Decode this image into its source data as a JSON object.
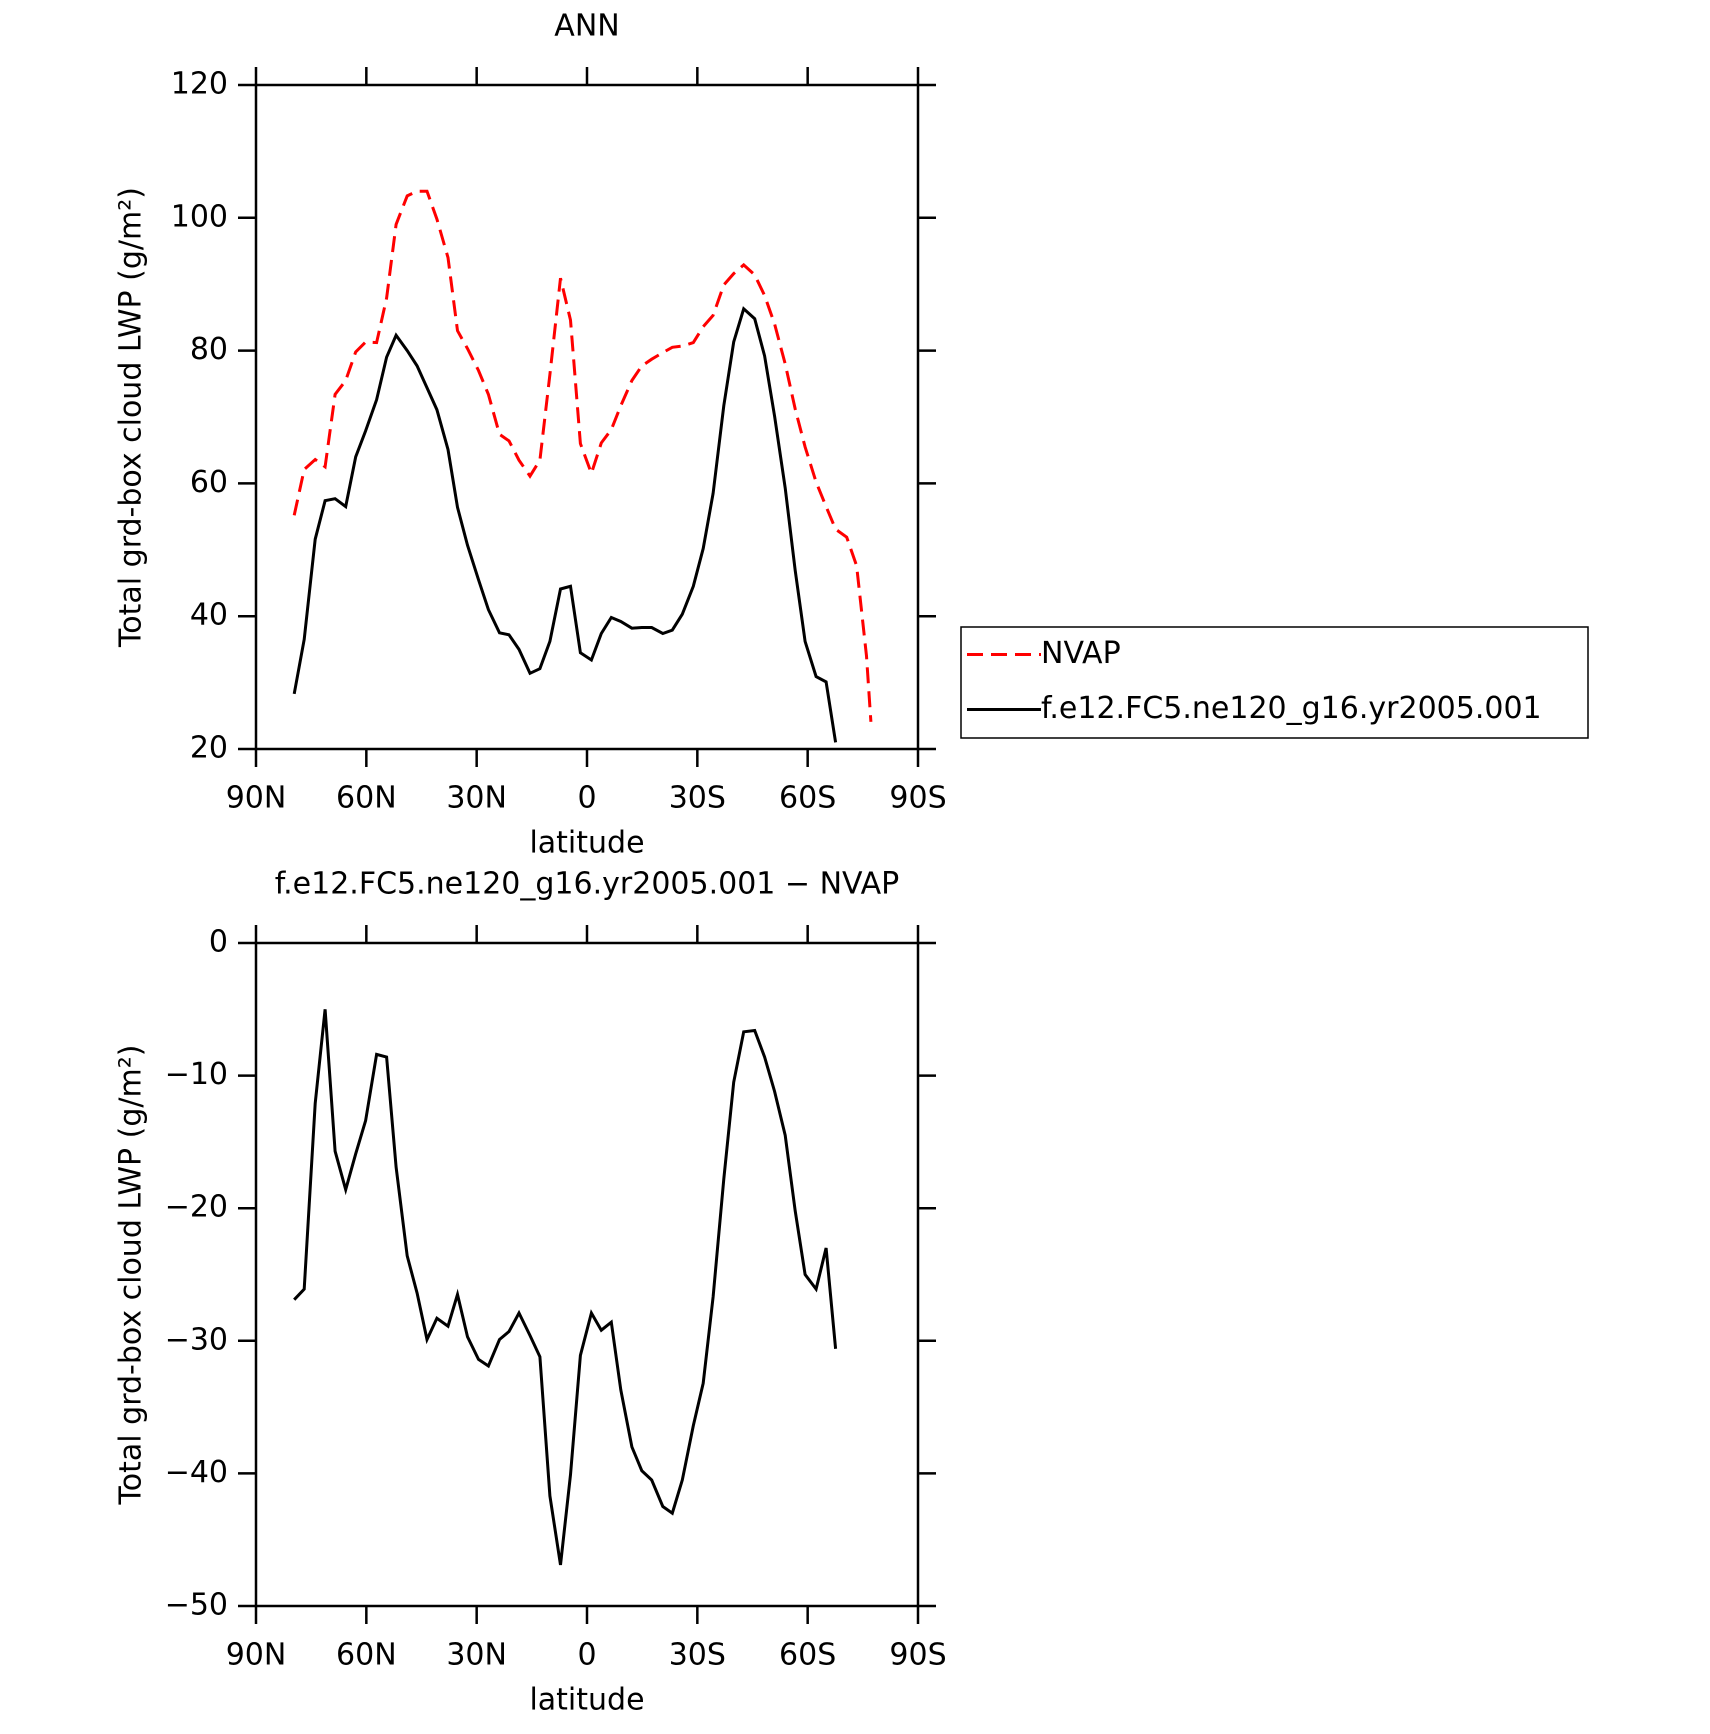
{
  "chart_data": [
    {
      "type": "line",
      "title": "ANN",
      "x_label": "latitude",
      "y_label": "Total grd-box cloud LWP (g/m²)",
      "x": [
        79.6,
        76.9,
        73.9,
        71.2,
        68.5,
        65.6,
        62.9,
        60.2,
        57.2,
        54.5,
        51.9,
        48.9,
        46.2,
        43.5,
        40.8,
        37.8,
        35.2,
        32.5,
        29.5,
        26.8,
        23.8,
        21.2,
        18.5,
        15.5,
        12.8,
        10.1,
        7.2,
        4.5,
        1.8,
        -1.2,
        -3.9,
        -6.6,
        -9.2,
        -12.2,
        -14.9,
        -17.6,
        -20.6,
        -23.2,
        -25.9,
        -28.9,
        -31.6,
        -34.3,
        -37.2,
        -39.9,
        -42.6,
        -45.6,
        -48.3,
        -51.0,
        -53.9,
        -56.6,
        -59.3,
        -62.3,
        -65.0,
        -67.6,
        -70.6,
        -73.3,
        -76.0,
        -77.2
      ],
      "series": [
        {
          "name": "NVAP",
          "color": "#ff0000",
          "linestyle": "dashed",
          "values": [
            55.2,
            62.1,
            63.6,
            62.5,
            73.4,
            75.5,
            79.8,
            81.3,
            81.2,
            87.9,
            99.0,
            103.3,
            104.0,
            104.0,
            99.8,
            94.0,
            83.0,
            80.3,
            77.0,
            73.4,
            67.4,
            66.4,
            63.5,
            61.1,
            63.5,
            76.4,
            90.9,
            84.6,
            66.0,
            61.5,
            66.1,
            68.1,
            71.7,
            75.5,
            77.7,
            78.7,
            79.7,
            80.5,
            80.7,
            81.2,
            83.6,
            85.3,
            89.9,
            91.6,
            92.9,
            91.4,
            88.3,
            84.0,
            78.0,
            71.2,
            65.5,
            60.2,
            56.5,
            53.1,
            51.9,
            47.6,
            34.0,
            24.1
          ]
        },
        {
          "name": "f.e12.FC5.ne120_g16.yr2005.001",
          "color": "#000000",
          "linestyle": "solid",
          "values": [
            28.3,
            36.5,
            51.6,
            57.4,
            57.7,
            56.5,
            64.0,
            67.9,
            72.6,
            79.0,
            82.3,
            80.0,
            77.7,
            74.4,
            71.1,
            65.1,
            56.4,
            50.7,
            45.5,
            41.0,
            37.5,
            37.2,
            35.0,
            31.4,
            32.1,
            36.2,
            44.1,
            44.5,
            34.5,
            33.4,
            37.4,
            39.8,
            39.2,
            38.2,
            38.3,
            38.3,
            37.4,
            37.9,
            40.3,
            44.5,
            50.2,
            58.5,
            71.7,
            81.3,
            86.3,
            84.8,
            79.2,
            70.1,
            59.3,
            46.9,
            36.2,
            30.9,
            30.1,
            21.0,
            null,
            null,
            null,
            null
          ]
        }
      ],
      "xlim": [
        90,
        -90
      ],
      "xticks": [
        {
          "value": 90,
          "label": "90N"
        },
        {
          "value": 60,
          "label": "60N"
        },
        {
          "value": 30,
          "label": "30N"
        },
        0,
        {
          "value": -30,
          "label": "30S"
        },
        {
          "value": -60,
          "label": "60S"
        },
        {
          "value": -90,
          "label": "90S"
        }
      ],
      "ylim": [
        20,
        120
      ],
      "yticks": [
        20,
        40,
        60,
        80,
        100,
        120
      ],
      "legend": "right"
    },
    {
      "type": "line",
      "title": "f.e12.FC5.ne120_g16.yr2005.001 − NVAP",
      "x_label": "latitude",
      "y_label": "Total grd-box cloud LWP (g/m²)",
      "x": [
        79.6,
        76.9,
        73.9,
        71.2,
        68.5,
        65.6,
        62.9,
        60.2,
        57.2,
        54.5,
        51.9,
        48.9,
        46.2,
        43.5,
        40.8,
        37.8,
        35.2,
        32.5,
        29.5,
        26.8,
        23.8,
        21.2,
        18.5,
        15.5,
        12.8,
        10.1,
        7.2,
        4.5,
        1.8,
        -1.2,
        -3.9,
        -6.6,
        -9.2,
        -12.2,
        -14.9,
        -17.6,
        -20.6,
        -23.2,
        -25.9,
        -28.9,
        -31.6,
        -34.3,
        -37.2,
        -39.9,
        -42.6,
        -45.6,
        -48.3,
        -51.0,
        -53.9,
        -56.6,
        -59.3,
        -62.3,
        -65.0,
        -67.6
      ],
      "series": [
        {
          "color": "#000000",
          "linestyle": "solid",
          "values": [
            -26.9,
            -26.1,
            -12.1,
            -5.0,
            -15.7,
            -18.6,
            -15.9,
            -13.4,
            -8.4,
            -8.6,
            -16.9,
            -23.6,
            -26.4,
            -29.9,
            -28.3,
            -28.9,
            -26.5,
            -29.7,
            -31.4,
            -31.9,
            -29.9,
            -29.3,
            -27.9,
            -29.6,
            -31.2,
            -41.7,
            -46.9,
            -40.1,
            -31.1,
            -27.9,
            -29.2,
            -28.6,
            -33.7,
            -38.0,
            -39.8,
            -40.5,
            -42.5,
            -43.0,
            -40.5,
            -36.4,
            -33.2,
            -26.7,
            -17.8,
            -10.5,
            -6.7,
            -6.6,
            -8.6,
            -11.2,
            -14.5,
            -20.2,
            -25.0,
            -26.1,
            -23.0,
            -30.6
          ]
        }
      ],
      "xlim": [
        90,
        -90
      ],
      "xticks": [
        {
          "value": 90,
          "label": "90N"
        },
        {
          "value": 60,
          "label": "60N"
        },
        {
          "value": 30,
          "label": "30N"
        },
        0,
        {
          "value": -30,
          "label": "30S"
        },
        {
          "value": -60,
          "label": "60S"
        },
        {
          "value": -90,
          "label": "90S"
        }
      ],
      "ylim": [
        -50,
        0
      ],
      "yticks": [
        {
          "value": -50,
          "label": "−50"
        },
        {
          "value": -40,
          "label": "−40"
        },
        {
          "value": -30,
          "label": "−30"
        },
        {
          "value": -20,
          "label": "−20"
        },
        {
          "value": -10,
          "label": "−10"
        },
        0
      ]
    }
  ]
}
